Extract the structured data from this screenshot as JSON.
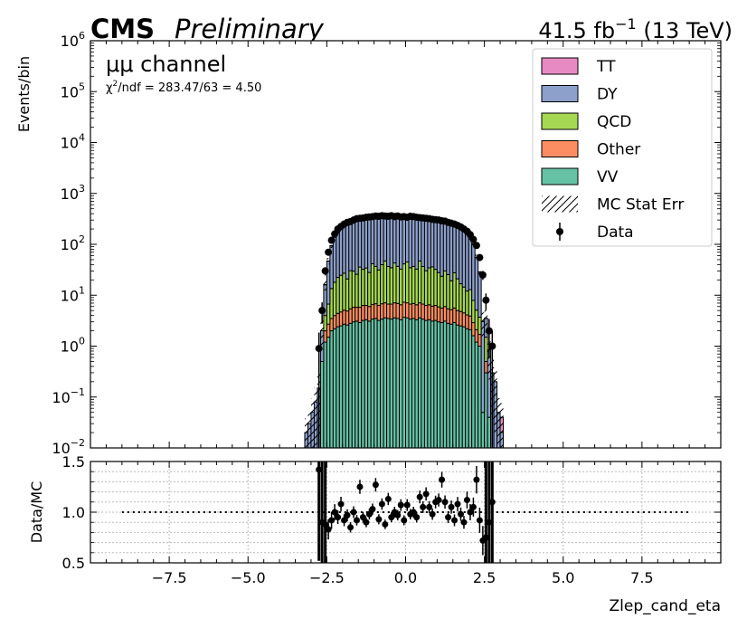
{
  "header": {
    "cms": "CMS",
    "preliminary": "Preliminary",
    "lumi": "41.5 fb",
    "lumi_exp": "−1",
    "energy": " (13 TeV)"
  },
  "annotations": {
    "channel": "μμ channel",
    "chi2_prefix": "χ",
    "chi2_exp": "2",
    "chi2_rest": "/ndf = 283.47/63 = 4.50"
  },
  "colors": {
    "TT": "#e78ac3",
    "DY": "#8da0cb",
    "QCD": "#a6d854",
    "Other": "#fc8d62",
    "VV": "#66c2a5",
    "data": "#000000"
  },
  "chart_data": [
    {
      "type": "bar",
      "stacked": true,
      "log_y": true,
      "xlim": [
        -10,
        10
      ],
      "ylim": [
        0.01,
        1000000
      ],
      "ylabel": "Events/bin",
      "xlabel": "",
      "y_ticks": [
        {
          "value": 0.01,
          "base": "10",
          "exp": "−2"
        },
        {
          "value": 0.1,
          "base": "10",
          "exp": "−1"
        },
        {
          "value": 1,
          "base": "10",
          "exp": "0"
        },
        {
          "value": 10,
          "base": "10",
          "exp": "1"
        },
        {
          "value": 100,
          "base": "10",
          "exp": "2"
        },
        {
          "value": 1000,
          "base": "10",
          "exp": "3"
        },
        {
          "value": 10000,
          "base": "10",
          "exp": "4"
        },
        {
          "value": 100000,
          "base": "10",
          "exp": "5"
        },
        {
          "value": 1000000,
          "base": "10",
          "exp": "6"
        }
      ],
      "legend_position": "top-right",
      "legend": [
        {
          "label": "TT",
          "kind": "box",
          "color_key": "TT"
        },
        {
          "label": "DY",
          "kind": "box",
          "color_key": "DY"
        },
        {
          "label": "QCD",
          "kind": "box",
          "color_key": "QCD"
        },
        {
          "label": "Other",
          "kind": "box",
          "color_key": "Other"
        },
        {
          "label": "VV",
          "kind": "box",
          "color_key": "VV"
        },
        {
          "label": "MC Stat Err",
          "kind": "hatch",
          "color_key": "data"
        },
        {
          "label": "Data",
          "kind": "marker",
          "color_key": "data"
        }
      ],
      "bin_width": 0.1,
      "bins_x": [
        -3.2,
        -3.1,
        -3.0,
        -2.9,
        -2.8,
        -2.7,
        -2.6,
        -2.5,
        -2.4,
        -2.3,
        -2.2,
        -2.1,
        -2.0,
        -1.9,
        -1.8,
        -1.7,
        -1.6,
        -1.5,
        -1.4,
        -1.3,
        -1.2,
        -1.1,
        -1.0,
        -0.9,
        -0.8,
        -0.7,
        -0.6,
        -0.5,
        -0.4,
        -0.3,
        -0.2,
        -0.1,
        0.0,
        0.1,
        0.2,
        0.3,
        0.4,
        0.5,
        0.6,
        0.7,
        0.8,
        0.9,
        1.0,
        1.1,
        1.2,
        1.3,
        1.4,
        1.5,
        1.6,
        1.7,
        1.8,
        1.9,
        2.0,
        2.1,
        2.2,
        2.3,
        2.4,
        2.5,
        2.6,
        2.7,
        2.8,
        2.9,
        3.0,
        3.1
      ],
      "series": [
        {
          "name": "VV",
          "color_key": "VV",
          "values": [
            0,
            0,
            0,
            0,
            0,
            0.5,
            1.2,
            1.5,
            2,
            2.2,
            2.4,
            2.5,
            2.7,
            2.6,
            2.8,
            3,
            3.1,
            2.9,
            3.2,
            3.3,
            3.1,
            3.4,
            3.5,
            3.2,
            3.4,
            3.6,
            3.5,
            3.4,
            3.6,
            3.5,
            3.3,
            3.7,
            3.6,
            3.4,
            3.5,
            3.3,
            3.6,
            3.4,
            3.2,
            3.3,
            3.1,
            3.2,
            3,
            2.9,
            3.1,
            2.8,
            2.7,
            2.9,
            2.6,
            2.5,
            2.4,
            2.2,
            2.1,
            1.6,
            1.2,
            1,
            0.05,
            0.3,
            0.04,
            0,
            0,
            0,
            0,
            0
          ]
        },
        {
          "name": "Other",
          "color_key": "Other",
          "values": [
            0,
            0,
            0,
            0,
            0,
            0,
            0.8,
            1.2,
            1.5,
            1.8,
            2,
            2.2,
            2.4,
            2.3,
            2.6,
            2.8,
            2.7,
            2.9,
            3.1,
            3,
            2.9,
            3.2,
            3.3,
            3.1,
            3.4,
            3.5,
            3.2,
            3.3,
            3.5,
            3.4,
            3.2,
            3.6,
            3.5,
            3.3,
            3.4,
            3.2,
            3.5,
            3.3,
            3.1,
            3.2,
            3,
            3.1,
            2.9,
            2.7,
            2.9,
            2.6,
            2.5,
            2.7,
            2.4,
            2.3,
            2.1,
            1.9,
            1.8,
            1.3,
            0.9,
            0.7,
            0,
            0.2,
            0,
            0,
            0,
            0,
            0,
            0
          ]
        },
        {
          "name": "QCD",
          "color_key": "QCD",
          "values": [
            0,
            0,
            0,
            0,
            0,
            0,
            2,
            4,
            10,
            14,
            18,
            20,
            22,
            16,
            25,
            24,
            20,
            30,
            26,
            28,
            22,
            35,
            30,
            25,
            33,
            40,
            30,
            28,
            36,
            30,
            26,
            34,
            38,
            28,
            30,
            26,
            40,
            30,
            24,
            28,
            30,
            26,
            22,
            18,
            24,
            20,
            14,
            22,
            16,
            12,
            10,
            8,
            9,
            5,
            3,
            2,
            0,
            1,
            0,
            0,
            0,
            0,
            0,
            0
          ]
        },
        {
          "name": "DY",
          "color_key": "DY",
          "values": [
            0.02,
            0.03,
            0.05,
            0.08,
            0.15,
            1.5,
            12,
            40,
            80,
            120,
            150,
            190,
            220,
            230,
            250,
            270,
            280,
            290,
            300,
            310,
            315,
            320,
            330,
            335,
            340,
            345,
            350,
            350,
            345,
            340,
            345,
            335,
            330,
            325,
            330,
            320,
            315,
            310,
            300,
            295,
            290,
            285,
            280,
            270,
            260,
            250,
            240,
            230,
            215,
            200,
            180,
            150,
            120,
            90,
            50,
            25,
            3,
            2,
            0.8,
            0.3,
            0.2,
            0.05,
            0.02,
            0
          ]
        },
        {
          "name": "TT",
          "color_key": "TT",
          "values": [
            0,
            0,
            0,
            0,
            0,
            0,
            0.2,
            0.5,
            1,
            2,
            3,
            3.5,
            4,
            4.5,
            5,
            5,
            5.5,
            6,
            6,
            6.5,
            6.5,
            7,
            7,
            7,
            7.5,
            7.5,
            7.5,
            7.5,
            7.5,
            7.5,
            7.5,
            7.5,
            7.5,
            7,
            7,
            7,
            7,
            6.5,
            6.5,
            6,
            6,
            5.5,
            5.5,
            5,
            5,
            4.5,
            4,
            3.5,
            3,
            2.5,
            2,
            1.5,
            1,
            0.5,
            0.3,
            0.1,
            0.02,
            0.02,
            0,
            0,
            0,
            0,
            0.02,
            0
          ]
        }
      ],
      "data_points": [
        {
          "x": -2.75,
          "y": 0.9
        },
        {
          "x": -2.65,
          "y": 5
        },
        {
          "x": -2.55,
          "y": 30
        },
        {
          "x": -2.45,
          "y": 70
        },
        {
          "x": -2.35,
          "y": 120
        },
        {
          "x": -2.25,
          "y": 160
        },
        {
          "x": -2.15,
          "y": 200
        },
        {
          "x": -2.05,
          "y": 225
        },
        {
          "x": -1.95,
          "y": 250
        },
        {
          "x": -1.85,
          "y": 270
        },
        {
          "x": -1.75,
          "y": 280
        },
        {
          "x": -1.65,
          "y": 300
        },
        {
          "x": -1.55,
          "y": 320
        },
        {
          "x": -1.45,
          "y": 325
        },
        {
          "x": -1.35,
          "y": 330
        },
        {
          "x": -1.25,
          "y": 340
        },
        {
          "x": -1.15,
          "y": 345
        },
        {
          "x": -1.05,
          "y": 350
        },
        {
          "x": -0.95,
          "y": 360
        },
        {
          "x": -0.85,
          "y": 355
        },
        {
          "x": -0.75,
          "y": 365
        },
        {
          "x": -0.65,
          "y": 360
        },
        {
          "x": -0.55,
          "y": 355
        },
        {
          "x": -0.45,
          "y": 365
        },
        {
          "x": -0.35,
          "y": 350
        },
        {
          "x": -0.25,
          "y": 360
        },
        {
          "x": -0.15,
          "y": 345
        },
        {
          "x": -0.05,
          "y": 350
        },
        {
          "x": 0.05,
          "y": 340
        },
        {
          "x": 0.15,
          "y": 355
        },
        {
          "x": 0.25,
          "y": 350
        },
        {
          "x": 0.35,
          "y": 340
        },
        {
          "x": 0.45,
          "y": 335
        },
        {
          "x": 0.55,
          "y": 330
        },
        {
          "x": 0.65,
          "y": 325
        },
        {
          "x": 0.75,
          "y": 320
        },
        {
          "x": 0.85,
          "y": 310
        },
        {
          "x": 0.95,
          "y": 305
        },
        {
          "x": 1.05,
          "y": 300
        },
        {
          "x": 1.15,
          "y": 290
        },
        {
          "x": 1.25,
          "y": 285
        },
        {
          "x": 1.35,
          "y": 270
        },
        {
          "x": 1.45,
          "y": 260
        },
        {
          "x": 1.55,
          "y": 250
        },
        {
          "x": 1.65,
          "y": 235
        },
        {
          "x": 1.75,
          "y": 220
        },
        {
          "x": 1.85,
          "y": 200
        },
        {
          "x": 1.95,
          "y": 180
        },
        {
          "x": 2.05,
          "y": 155
        },
        {
          "x": 2.15,
          "y": 125
        },
        {
          "x": 2.25,
          "y": 95
        },
        {
          "x": 2.35,
          "y": 55
        },
        {
          "x": 2.45,
          "y": 25
        },
        {
          "x": 2.55,
          "y": 8
        },
        {
          "x": 2.65,
          "y": 2
        },
        {
          "x": 2.75,
          "y": 1
        }
      ]
    },
    {
      "type": "scatter",
      "xlim": [
        -10,
        10
      ],
      "ylim": [
        0.5,
        1.5
      ],
      "ylabel": "Data/MC",
      "xlabel": "Zlep_cand_eta",
      "x_ticks": [
        -7.5,
        -5.0,
        -2.5,
        0.0,
        2.5,
        5.0,
        7.5
      ],
      "x_tick_labels": [
        "−7.5",
        "−5.0",
        "−2.5",
        "0.0",
        "2.5",
        "5.0",
        "7.5"
      ],
      "y_ticks": [
        0.5,
        1.0,
        1.5
      ],
      "y_tick_labels": [
        "0.5",
        "1.0",
        "1.5"
      ],
      "reference_line": {
        "y": 1.0,
        "x_from": -9,
        "x_to": 9
      },
      "grid": true,
      "points": [
        {
          "x": -2.75,
          "y": 1.42
        },
        {
          "x": -2.65,
          "y": 0.9
        },
        {
          "x": -2.55,
          "y": 0.88
        },
        {
          "x": -2.45,
          "y": 0.83
        },
        {
          "x": -2.35,
          "y": 0.92
        },
        {
          "x": -2.25,
          "y": 1.0
        },
        {
          "x": -2.15,
          "y": 0.95
        },
        {
          "x": -2.05,
          "y": 1.08
        },
        {
          "x": -1.95,
          "y": 0.92
        },
        {
          "x": -1.85,
          "y": 0.97
        },
        {
          "x": -1.75,
          "y": 0.85
        },
        {
          "x": -1.65,
          "y": 1.0
        },
        {
          "x": -1.55,
          "y": 0.92
        },
        {
          "x": -1.45,
          "y": 1.25
        },
        {
          "x": -1.35,
          "y": 0.95
        },
        {
          "x": -1.25,
          "y": 0.9
        },
        {
          "x": -1.15,
          "y": 0.98
        },
        {
          "x": -1.05,
          "y": 1.03
        },
        {
          "x": -0.95,
          "y": 1.27
        },
        {
          "x": -0.85,
          "y": 0.93
        },
        {
          "x": -0.75,
          "y": 1.08
        },
        {
          "x": -0.65,
          "y": 0.88
        },
        {
          "x": -0.55,
          "y": 1.13
        },
        {
          "x": -0.45,
          "y": 0.95
        },
        {
          "x": -0.35,
          "y": 1.0
        },
        {
          "x": -0.25,
          "y": 0.97
        },
        {
          "x": -0.15,
          "y": 1.07
        },
        {
          "x": -0.05,
          "y": 0.92
        },
        {
          "x": 0.05,
          "y": 1.07
        },
        {
          "x": 0.15,
          "y": 0.98
        },
        {
          "x": 0.25,
          "y": 1.0
        },
        {
          "x": 0.35,
          "y": 0.95
        },
        {
          "x": 0.45,
          "y": 1.15
        },
        {
          "x": 0.55,
          "y": 1.05
        },
        {
          "x": 0.65,
          "y": 1.18
        },
        {
          "x": 0.75,
          "y": 1.05
        },
        {
          "x": 0.85,
          "y": 0.98
        },
        {
          "x": 0.95,
          "y": 1.1
        },
        {
          "x": 1.05,
          "y": 1.12
        },
        {
          "x": 1.15,
          "y": 1.32
        },
        {
          "x": 1.25,
          "y": 1.1
        },
        {
          "x": 1.35,
          "y": 0.95
        },
        {
          "x": 1.45,
          "y": 1.05
        },
        {
          "x": 1.55,
          "y": 0.92
        },
        {
          "x": 1.65,
          "y": 1.08
        },
        {
          "x": 1.75,
          "y": 0.98
        },
        {
          "x": 1.85,
          "y": 0.9
        },
        {
          "x": 1.95,
          "y": 1.12
        },
        {
          "x": 2.05,
          "y": 1.0
        },
        {
          "x": 2.15,
          "y": 1.05
        },
        {
          "x": 2.25,
          "y": 1.32
        },
        {
          "x": 2.35,
          "y": 0.92
        },
        {
          "x": 2.45,
          "y": 0.72
        },
        {
          "x": 2.55,
          "y": 0.75
        },
        {
          "x": 2.65,
          "y": 0.9
        },
        {
          "x": 2.75,
          "y": 1.1
        }
      ]
    }
  ]
}
